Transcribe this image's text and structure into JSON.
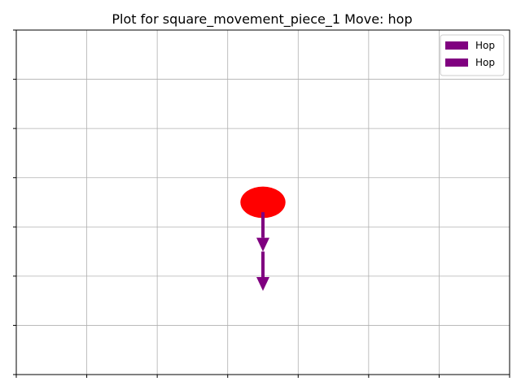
{
  "chart_data": {
    "type": "scatter",
    "title": "Plot for  square_movement_piece_1 Move: hop",
    "xlabel": "",
    "ylabel": "",
    "xlim": [
      0,
      7
    ],
    "ylim": [
      0,
      7
    ],
    "grid": true,
    "show_tick_labels": false,
    "legend": {
      "placement": "top-right",
      "entries": [
        {
          "label": "Hop",
          "color": "#800080"
        },
        {
          "label": "Hop",
          "color": "#800080"
        }
      ]
    },
    "piece": {
      "x": 3.5,
      "y": 3.5,
      "color": "#ff0000"
    },
    "arrows": [
      {
        "name": "Hop",
        "x": 3.5,
        "y": 3.3,
        "dx": 0,
        "dy": -0.8,
        "color": "#800080"
      },
      {
        "name": "Hop",
        "x": 3.5,
        "y": 2.5,
        "dx": 0,
        "dy": -0.8,
        "color": "#800080"
      }
    ]
  }
}
